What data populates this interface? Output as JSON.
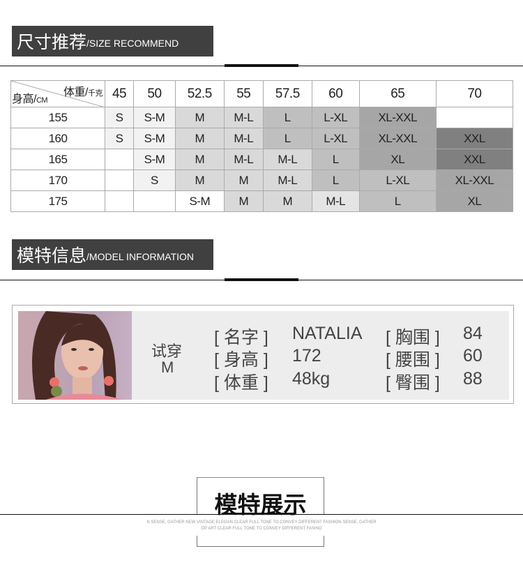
{
  "size_section": {
    "title_cn": "尺寸推荐",
    "title_en": "/SIZE RECOMMEND"
  },
  "size_table": {
    "corner_weight": "体重/",
    "corner_weight_unit": "千克",
    "corner_height": "身高/",
    "corner_height_unit": "CM",
    "weights": [
      "45",
      "50",
      "52.5",
      "55",
      "57.5",
      "60",
      "65",
      "70"
    ],
    "rows": [
      {
        "height": "155",
        "sizes": [
          "S",
          "S-M",
          "M",
          "M-L",
          "L",
          "L-XL",
          "XL-XXL",
          ""
        ]
      },
      {
        "height": "160",
        "sizes": [
          "S",
          "S-M",
          "M",
          "M-L",
          "L",
          "L-XL",
          "XL-XXL",
          "XXL"
        ]
      },
      {
        "height": "165",
        "sizes": [
          "",
          "S-M",
          "M",
          "M-L",
          "M-L",
          "L",
          "XL",
          "XXL"
        ]
      },
      {
        "height": "170",
        "sizes": [
          "",
          "S",
          "M",
          "M",
          "M-L",
          "L",
          "L-XL",
          "XL-XXL"
        ]
      },
      {
        "height": "175",
        "sizes": [
          "",
          "",
          "S-M",
          "M",
          "M",
          "M-L",
          "L",
          "XL"
        ]
      }
    ],
    "size_colors": {
      "S": "#f2f2f2",
      "S-M": "#f2f2f2",
      "M": "#d9d9d9",
      "M-L": "#d9d9d9",
      "L": "#bfbfbf",
      "L-XL": "#bfbfbf",
      "XL": "#a6a6a6",
      "XL-XXL": "#a6a6a6",
      "XXL": "#808080"
    }
  },
  "model_section": {
    "title_cn": "模特信息",
    "title_en": "/MODEL INFORMATION"
  },
  "model": {
    "try_label": "试穿",
    "try_size": "M",
    "name_label": "[ 名字 ]",
    "name": "NATALIA",
    "height_label": "[ 身高 ]",
    "height": "172",
    "weight_label": "[ 体重 ]",
    "weight": "48kg",
    "bust_label": "[ 胸围 ]",
    "bust": "84",
    "waist_label": "[ 腰围 ]",
    "waist": "60",
    "hip_label": "[ 臀围 ]",
    "hip": "88"
  },
  "showcase": {
    "title": "模特展示",
    "en_line1": "N SENSE, GATHER NEW VINTAGE ELEGAN CLEAR FULL TONE TO CONVEY DIFFERENT FASHION SENSE, GATHER",
    "en_line2": "OP ART CLEAR FULL TONE TO CONVEY DIFFERENT FASHIO"
  }
}
